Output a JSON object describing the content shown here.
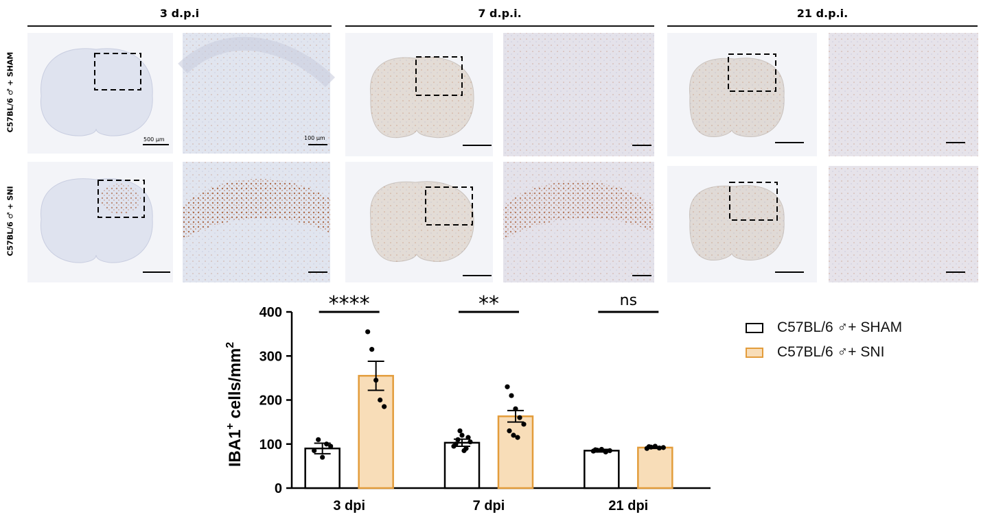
{
  "micrograph_panel": {
    "columns": [
      {
        "title": "3 d.p.i"
      },
      {
        "title": "7 d.p.i."
      },
      {
        "title": "21 d.p.i."
      }
    ],
    "rows": [
      {
        "label": "C57BL/6 ♂ + SHAM"
      },
      {
        "label": "C57BL/6 ♂ + SNI"
      }
    ],
    "scalebars": {
      "overview": "500 µm",
      "zoom": "100 µm"
    },
    "colors": {
      "tissue": "#dfe3ef",
      "stain": "#b5643a",
      "background": "#ffffff"
    }
  },
  "chart_data": {
    "type": "bar",
    "categories": [
      "3 dpi",
      "7 dpi",
      "21 dpi"
    ],
    "ylabel": "IBA1+ cells/mm2",
    "ylabel_main": "IBA1",
    "ylabel_sup": "+",
    "ylabel_rest": " cells/mm",
    "ylabel_sup2": "2",
    "ylim": [
      0,
      400
    ],
    "yticks": [
      "0",
      "100",
      "200",
      "300",
      "400"
    ],
    "series": [
      {
        "name": "C57BL/6 ♂+ SHAM",
        "color": "#ffffff",
        "edge": "#000000",
        "values": [
          90,
          103,
          85
        ],
        "sem": [
          12,
          8,
          3
        ],
        "points": [
          [
            85,
            110,
            70,
            100,
            95
          ],
          [
            95,
            110,
            120,
            90,
            105,
            100,
            130,
            85,
            115
          ],
          [
            84,
            86,
            88,
            82,
            85,
            87
          ]
        ]
      },
      {
        "name": "C57BL/6 ♂+ SNI",
        "color": "#f8ddb8",
        "edge": "#e39c3b",
        "values": [
          255,
          163,
          92
        ],
        "sem": [
          33,
          13,
          2
        ],
        "points": [
          [
            355,
            315,
            245,
            200,
            185
          ],
          [
            230,
            210,
            180,
            160,
            145,
            130,
            120,
            115
          ],
          [
            90,
            93,
            95,
            91,
            92,
            94
          ]
        ]
      }
    ],
    "significance": [
      "****",
      "**",
      "ns"
    ]
  }
}
